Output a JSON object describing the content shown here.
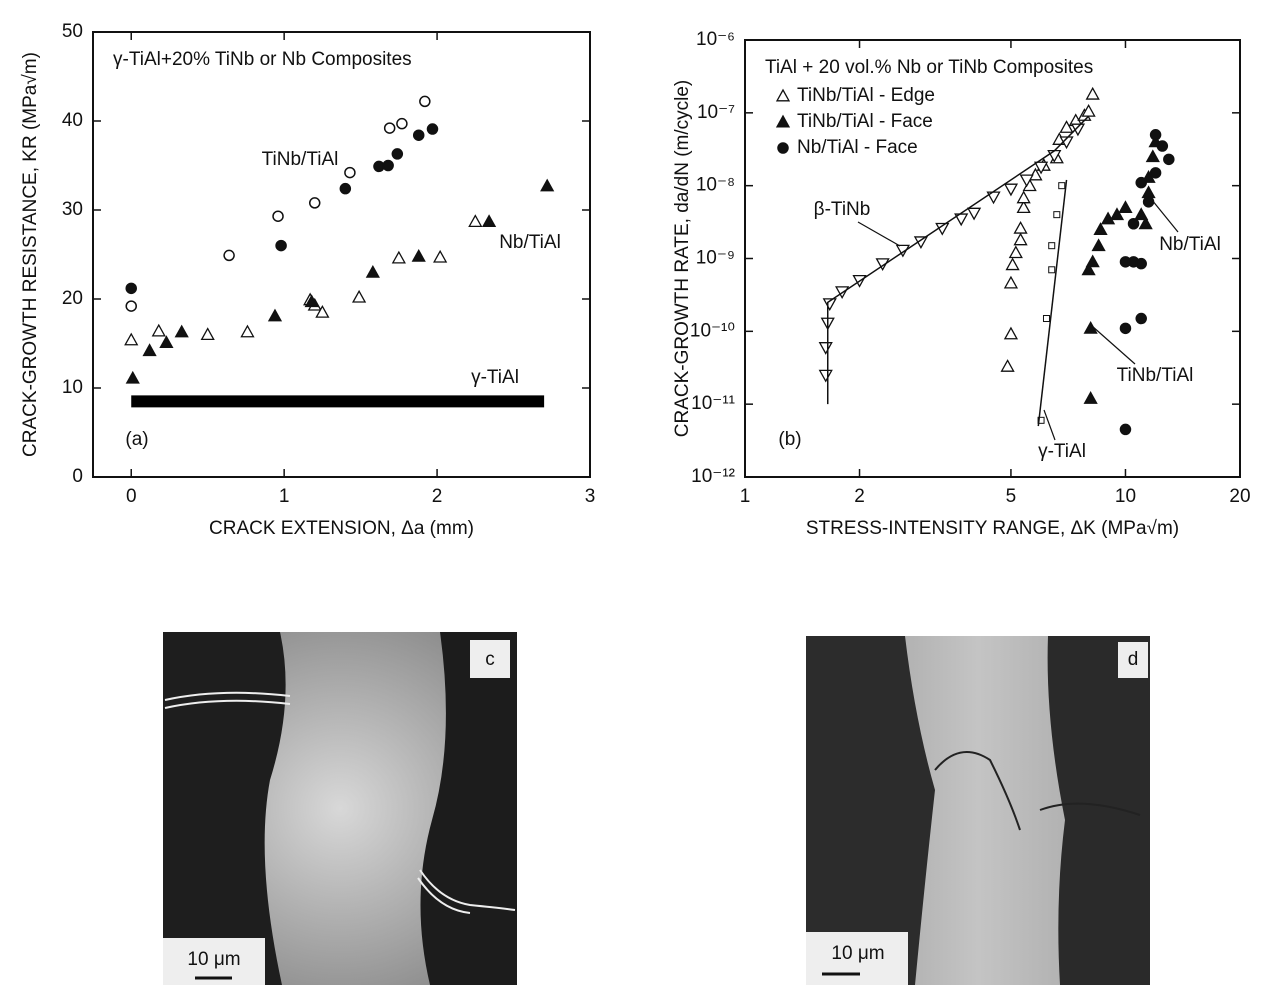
{
  "chart_data": [
    {
      "type": "scatter",
      "title": "γ-TiAl+20% TiNb or Nb Composites",
      "x_label": "CRACK EXTENSION, Δa (mm)",
      "y_label": "CRACK-GROWTH RESISTANCE, KR (MPa√m)",
      "xlim": [
        -0.25,
        3
      ],
      "ylim": [
        0,
        50
      ],
      "xticks": [
        0,
        1,
        2,
        3
      ],
      "yticks": [
        0,
        10,
        20,
        30,
        40,
        50
      ],
      "annotations": [
        "TiNb/TiAl",
        "Nb/TiAl",
        "γ-TiAl",
        "(a)"
      ],
      "series": [
        {
          "marker": "circle-open",
          "color": "#111111",
          "x": [
            0,
            0.64,
            0.96,
            1.2,
            1.43,
            1.69,
            1.77,
            1.92
          ],
          "values": [
            19.2,
            24.9,
            29.3,
            30.8,
            34.2,
            39.2,
            39.7,
            42.2
          ]
        },
        {
          "marker": "circle",
          "color": "#111111",
          "x": [
            0,
            0.98,
            1.4,
            1.62,
            1.68,
            1.74,
            1.88,
            1.97
          ],
          "values": [
            21.2,
            26,
            32.4,
            34.9,
            35,
            36.3,
            38.4,
            39.1
          ]
        },
        {
          "marker": "triangle-open",
          "color": "#111111",
          "x": [
            0,
            0.18,
            0.5,
            0.76,
            1.17,
            1.2,
            1.25,
            1.49,
            1.75,
            2.02,
            2.25
          ],
          "values": [
            15.4,
            16.4,
            16,
            16.3,
            19.9,
            19.3,
            18.5,
            20.2,
            24.6,
            24.7,
            28.7
          ]
        },
        {
          "marker": "triangle",
          "color": "#111111",
          "x": [
            0.01,
            0.12,
            0.23,
            0.33,
            0.94,
            1.18,
            1.58,
            1.88,
            2.34,
            2.72
          ],
          "values": [
            11.1,
            14.2,
            15.1,
            16.3,
            18.1,
            19.7,
            23,
            24.8,
            28.7,
            32.7
          ]
        },
        {
          "marker": "bar",
          "color": "#000000",
          "x": [
            0,
            2.7
          ],
          "values": [
            8.5,
            8.5
          ]
        }
      ]
    },
    {
      "type": "scatter",
      "title": "TiAl + 20 vol.% Nb or TiNb Composites",
      "x_label": "STRESS-INTENSITY RANGE, ΔK (MPa√m)",
      "y_label": "CRACK-GROWTH RATE, da/dN (m/cycle)",
      "xscale": "log",
      "yscale": "log",
      "legend": "upper left",
      "xlim": [
        1,
        20
      ],
      "ylim": [
        1e-12,
        1e-06
      ],
      "xticks": [
        1,
        2,
        5,
        10,
        20
      ],
      "yticks": [
        {
          "value": 1e-12,
          "label": "10⁻¹²"
        },
        {
          "value": 1e-11,
          "label": "10⁻¹¹"
        },
        {
          "value": 1e-10,
          "label": "10⁻¹⁰"
        },
        {
          "value": 1e-09,
          "label": "10⁻⁹"
        },
        {
          "value": 1e-08,
          "label": "10⁻⁸"
        },
        {
          "value": 1e-07,
          "label": "10⁻⁷"
        },
        {
          "value": 1e-06,
          "label": "10⁻⁶"
        }
      ],
      "annotations": [
        "β-TiNb",
        "Nb/TiAl",
        "TiNb/TiAl",
        "γ-TiAl",
        "(b)"
      ],
      "series": [
        {
          "name": "TiNb/TiAl - Edge",
          "marker": "triangle-open",
          "color": "#111111",
          "x": [
            4.9,
            5.0,
            5.0,
            5.05,
            5.15,
            5.3,
            5.3,
            5.4,
            5.4,
            5.6,
            5.8,
            6.1,
            6.6,
            6.7,
            7.0,
            7.4,
            7.8,
            8.0,
            8.2
          ],
          "values": [
            3.3e-11,
            9.2e-11,
            4.6e-10,
            8.2e-10,
            1.2e-09,
            1.8e-09,
            2.6e-09,
            5e-09,
            6.8e-09,
            1e-08,
            1.4e-08,
            1.9e-08,
            2.4e-08,
            4.3e-08,
            6.3e-08,
            7.8e-08,
            9.2e-08,
            1.05e-07,
            1.8e-07
          ]
        },
        {
          "name": "TiNb/TiAl - Face",
          "marker": "triangle",
          "color": "#111111",
          "x": [
            8.1,
            8.1,
            8.0,
            8.2,
            8.5,
            8.6,
            9.0,
            9.5,
            10,
            11,
            11.3,
            11.5,
            11.5,
            11.8,
            12.0
          ],
          "values": [
            1.2e-11,
            1.1e-10,
            7e-10,
            9e-10,
            1.5e-09,
            2.5e-09,
            3.5e-09,
            4e-09,
            5e-09,
            4e-09,
            3e-09,
            8e-09,
            1.3e-08,
            2.5e-08,
            4e-08
          ]
        },
        {
          "name": "Nb/TiAl - Face",
          "marker": "circle",
          "color": "#111111",
          "x": [
            10.0,
            10.0,
            10.0,
            10.5,
            11,
            11,
            10.5,
            11,
            11.5,
            12,
            12.5,
            13,
            12
          ],
          "values": [
            4.5e-12,
            1.1e-10,
            9e-10,
            9e-10,
            8.5e-10,
            1.5e-10,
            3e-09,
            1.1e-08,
            6e-09,
            5e-08,
            3.5e-08,
            2.3e-08,
            1.5e-08
          ]
        },
        {
          "marker": "tri-down-open",
          "color": "#111111",
          "x": [
            1.63,
            1.63,
            1.65,
            1.67,
            1.8,
            2.0,
            2.3,
            2.6,
            2.9,
            3.3,
            3.7,
            4.0,
            4.5,
            5.0,
            5.5,
            6.0,
            6.5,
            7.0,
            7.5
          ],
          "values": [
            2.5e-11,
            6e-11,
            1.3e-10,
            2.4e-10,
            3.5e-10,
            5e-10,
            8.5e-10,
            1.3e-09,
            1.7e-09,
            2.6e-09,
            3.5e-09,
            4.2e-09,
            7e-09,
            9e-09,
            1.2e-08,
            1.8e-08,
            2.6e-08,
            4e-08,
            6e-08
          ]
        },
        {
          "marker": "square-open",
          "color": "#111111",
          "x": [
            6.0,
            6.2,
            6.4,
            6.4,
            6.6,
            6.8
          ],
          "values": [
            6e-12,
            1.5e-10,
            7e-10,
            1.5e-09,
            4e-09,
            1e-08
          ]
        },
        {
          "marker": "line",
          "color": "#111111",
          "x": [
            1.65,
            1.65,
            6.5,
            8.0
          ],
          "values": [
            1e-11,
            2.5e-10,
            3e-08,
            9e-08
          ]
        },
        {
          "marker": "line",
          "color": "#111111",
          "x": [
            5.9,
            7.0
          ],
          "values": [
            5e-12,
            1.2e-08
          ]
        }
      ]
    }
  ],
  "micrographs": [
    {
      "label": "c",
      "scale": "10 μm"
    },
    {
      "label": "d",
      "scale": "10 μm"
    }
  ]
}
